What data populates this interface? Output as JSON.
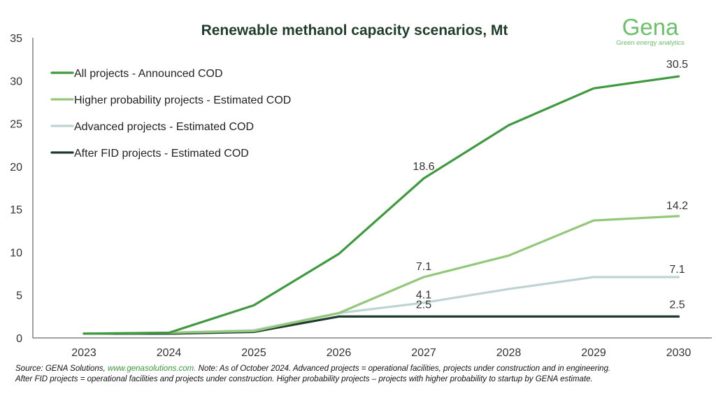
{
  "logo": {
    "word": "Gena",
    "tagline": "Green energy analytics",
    "color": "#6cc06a"
  },
  "chart_data": {
    "type": "line",
    "title": "Renewable methanol capacity scenarios, Mt",
    "xlabel": "",
    "ylabel": "",
    "categories": [
      "2023",
      "2024",
      "2025",
      "2026",
      "2027",
      "2028",
      "2029",
      "2030"
    ],
    "ylim": [
      0,
      35
    ],
    "yticks": [
      0,
      5,
      10,
      15,
      20,
      25,
      30,
      35
    ],
    "grid": false,
    "legend_position": "top-left",
    "series": [
      {
        "name": "All projects - Announced COD",
        "color": "#3f9a3f",
        "values": [
          0.5,
          0.6,
          3.8,
          9.8,
          18.6,
          24.8,
          29.1,
          30.5
        ],
        "labels": [
          {
            "index": 4,
            "text": "18.6"
          },
          {
            "index": 7,
            "text": "30.5"
          }
        ]
      },
      {
        "name": "Higher probability projects - Estimated COD",
        "color": "#93c77a",
        "values": [
          0.5,
          0.6,
          0.8,
          2.9,
          7.1,
          9.6,
          13.7,
          14.2
        ],
        "labels": [
          {
            "index": 4,
            "text": "7.1"
          },
          {
            "index": 7,
            "text": "14.2"
          }
        ]
      },
      {
        "name": "Advanced projects - Estimated COD",
        "color": "#bfd3d3",
        "values": [
          0.5,
          0.6,
          0.9,
          2.9,
          4.1,
          5.7,
          7.1,
          7.1
        ],
        "labels": [
          {
            "index": 4,
            "text": "4.1"
          },
          {
            "index": 7,
            "text": "7.1"
          }
        ]
      },
      {
        "name": "After FID projects - Estimated COD",
        "color": "#1d3c2c",
        "values": [
          0.5,
          0.5,
          0.7,
          2.5,
          2.5,
          2.5,
          2.5,
          2.5
        ],
        "labels": [
          {
            "index": 4,
            "text": "2.5"
          },
          {
            "index": 7,
            "text": "2.5"
          }
        ]
      }
    ]
  },
  "footnote": {
    "line1_prefix": "Source: GENA Solutions, ",
    "line1_link": "www.genasolutions.com.",
    "line1_suffix": " Note: As of October 2024. Advanced projects = operational facilities, projects under construction and in engineering.",
    "line2": "After FID projects = operational facilities and projects under construction. Higher probability projects – projects with higher probability to startup by GENA estimate."
  }
}
